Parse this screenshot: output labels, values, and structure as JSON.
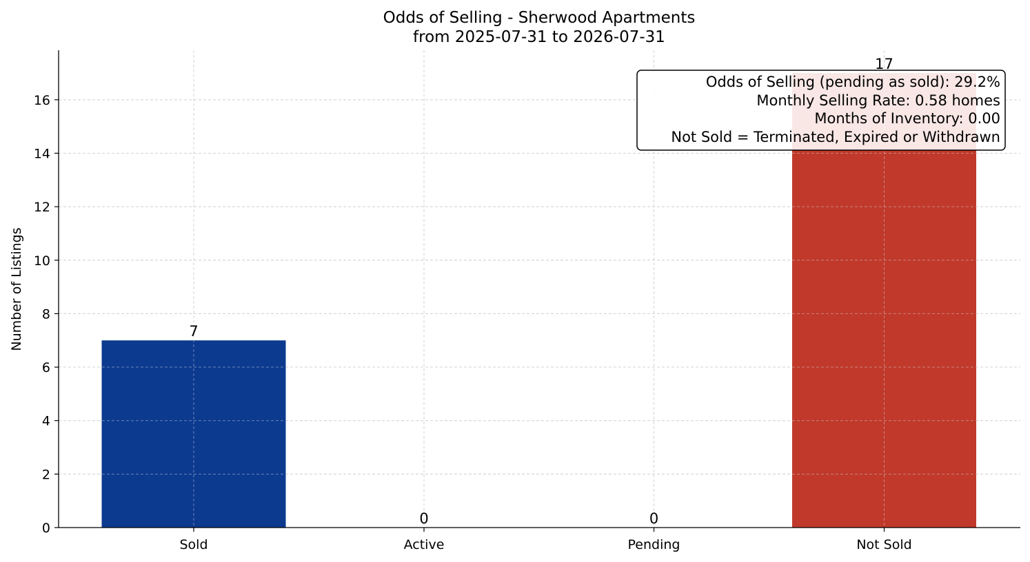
{
  "chart_data": {
    "type": "bar",
    "title": "Odds of Selling - Sherwood Apartments",
    "subtitle": "from 2025-07-31 to 2026-07-31",
    "xlabel": "",
    "ylabel": "Number of Listings",
    "categories": [
      "Sold",
      "Active",
      "Pending",
      "Not Sold"
    ],
    "values": [
      7,
      0,
      0,
      17
    ],
    "colors": [
      "#0b3a8f",
      "#0b3a8f",
      "#0b3a8f",
      "#c0392b"
    ],
    "ylim": [
      0,
      17.85
    ],
    "yticks": [
      0,
      2,
      4,
      6,
      8,
      10,
      12,
      14,
      16
    ],
    "grid": true,
    "annotation": {
      "placement": "top-right",
      "lines": [
        "Odds of Selling (pending as sold): 29.2%",
        "Monthly Selling Rate: 0.58 homes",
        "Months of Inventory: 0.00",
        "Not Sold = Terminated, Expired or Withdrawn"
      ]
    }
  }
}
